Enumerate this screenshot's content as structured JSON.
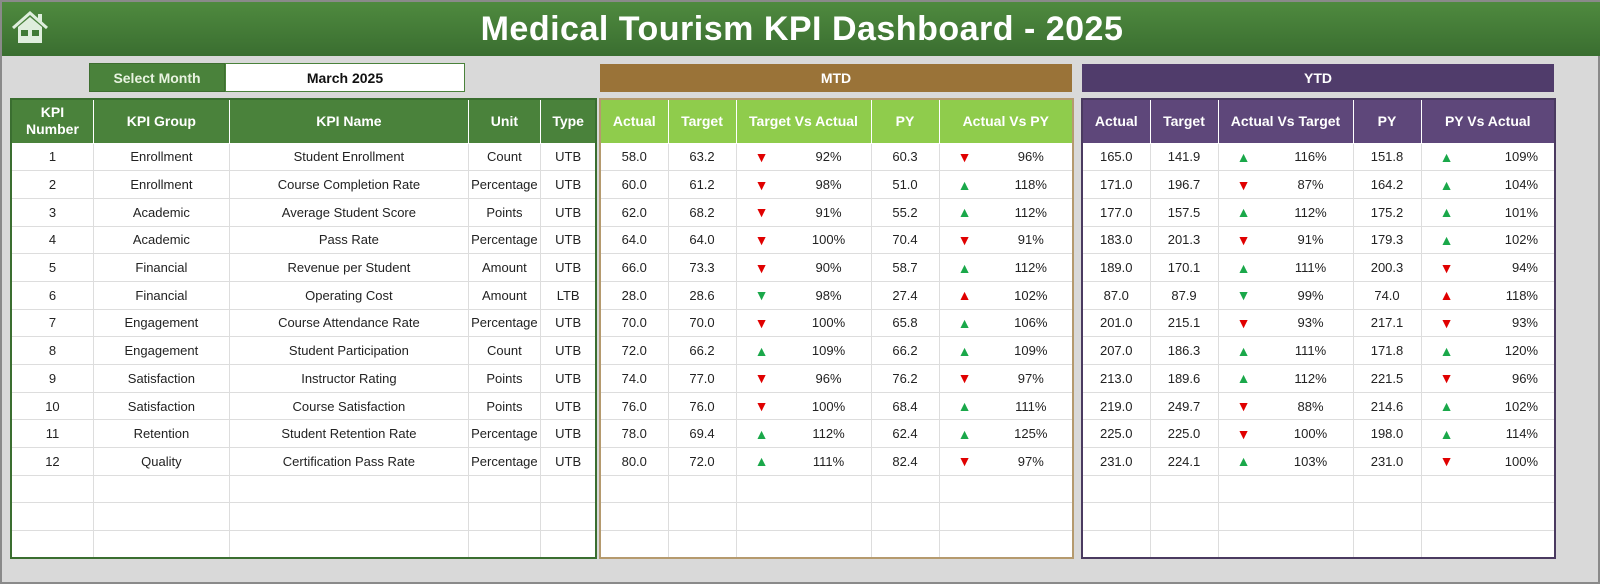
{
  "header": {
    "title": "Medical Tourism KPI Dashboard - 2025",
    "home_icon": "home-icon"
  },
  "month_selector": {
    "label": "Select Month",
    "value": "March 2025"
  },
  "sections": {
    "mtd": "MTD",
    "ytd": "YTD"
  },
  "colors": {
    "title_green": "#3f7a35",
    "mtd_band": "#9a7338",
    "ytd_band": "#503c6b",
    "mtd_header": "#8fcc4c",
    "ytd_header": "#5e477a",
    "up": "#1aa84a",
    "down": "#e00000"
  },
  "left_headers": [
    "KPI Number",
    "KPI Group",
    "KPI Name",
    "Unit",
    "Type"
  ],
  "mtd_headers": [
    "Actual",
    "Target",
    "Target Vs Actual",
    "PY",
    "Actual Vs PY"
  ],
  "ytd_headers": [
    "Actual",
    "Target",
    "Actual Vs Target",
    "PY",
    "PY Vs Actual"
  ],
  "rows": [
    {
      "num": "1",
      "group": "Enrollment",
      "name": "Student Enrollment",
      "unit": "Count",
      "type": "UTB",
      "mtd": {
        "actual": "58.0",
        "target": "63.2",
        "tva_dir": "down",
        "tva": "92%",
        "py": "60.3",
        "avp_dir": "down",
        "avp": "96%"
      },
      "ytd": {
        "actual": "165.0",
        "target": "141.9",
        "avt_dir": "up",
        "avt": "116%",
        "py": "151.8",
        "pva_dir": "up",
        "pva": "109%"
      }
    },
    {
      "num": "2",
      "group": "Enrollment",
      "name": "Course Completion Rate",
      "unit": "Percentage",
      "type": "UTB",
      "mtd": {
        "actual": "60.0",
        "target": "61.2",
        "tva_dir": "down",
        "tva": "98%",
        "py": "51.0",
        "avp_dir": "up",
        "avp": "118%"
      },
      "ytd": {
        "actual": "171.0",
        "target": "196.7",
        "avt_dir": "down",
        "avt": "87%",
        "py": "164.2",
        "pva_dir": "up",
        "pva": "104%"
      }
    },
    {
      "num": "3",
      "group": "Academic",
      "name": "Average Student Score",
      "unit": "Points",
      "type": "UTB",
      "mtd": {
        "actual": "62.0",
        "target": "68.2",
        "tva_dir": "down",
        "tva": "91%",
        "py": "55.2",
        "avp_dir": "up",
        "avp": "112%"
      },
      "ytd": {
        "actual": "177.0",
        "target": "157.5",
        "avt_dir": "up",
        "avt": "112%",
        "py": "175.2",
        "pva_dir": "up",
        "pva": "101%"
      }
    },
    {
      "num": "4",
      "group": "Academic",
      "name": "Pass Rate",
      "unit": "Percentage",
      "type": "UTB",
      "mtd": {
        "actual": "64.0",
        "target": "64.0",
        "tva_dir": "down",
        "tva": "100%",
        "py": "70.4",
        "avp_dir": "down",
        "avp": "91%"
      },
      "ytd": {
        "actual": "183.0",
        "target": "201.3",
        "avt_dir": "down",
        "avt": "91%",
        "py": "179.3",
        "pva_dir": "up",
        "pva": "102%"
      }
    },
    {
      "num": "5",
      "group": "Financial",
      "name": "Revenue per Student",
      "unit": "Amount",
      "type": "UTB",
      "mtd": {
        "actual": "66.0",
        "target": "73.3",
        "tva_dir": "down",
        "tva": "90%",
        "py": "58.7",
        "avp_dir": "up",
        "avp": "112%"
      },
      "ytd": {
        "actual": "189.0",
        "target": "170.1",
        "avt_dir": "up",
        "avt": "111%",
        "py": "200.3",
        "pva_dir": "down",
        "pva": "94%"
      }
    },
    {
      "num": "6",
      "group": "Financial",
      "name": "Operating Cost",
      "unit": "Amount",
      "type": "LTB",
      "mtd": {
        "actual": "28.0",
        "target": "28.6",
        "tva_dir": "down-green",
        "tva": "98%",
        "py": "27.4",
        "avp_dir": "up-red",
        "avp": "102%"
      },
      "ytd": {
        "actual": "87.0",
        "target": "87.9",
        "avt_dir": "down-green",
        "avt": "99%",
        "py": "74.0",
        "pva_dir": "up-red",
        "pva": "118%"
      }
    },
    {
      "num": "7",
      "group": "Engagement",
      "name": "Course Attendance Rate",
      "unit": "Percentage",
      "type": "UTB",
      "mtd": {
        "actual": "70.0",
        "target": "70.0",
        "tva_dir": "down",
        "tva": "100%",
        "py": "65.8",
        "avp_dir": "up",
        "avp": "106%"
      },
      "ytd": {
        "actual": "201.0",
        "target": "215.1",
        "avt_dir": "down",
        "avt": "93%",
        "py": "217.1",
        "pva_dir": "down",
        "pva": "93%"
      }
    },
    {
      "num": "8",
      "group": "Engagement",
      "name": "Student Participation",
      "unit": "Count",
      "type": "UTB",
      "mtd": {
        "actual": "72.0",
        "target": "66.2",
        "tva_dir": "up",
        "tva": "109%",
        "py": "66.2",
        "avp_dir": "up",
        "avp": "109%"
      },
      "ytd": {
        "actual": "207.0",
        "target": "186.3",
        "avt_dir": "up",
        "avt": "111%",
        "py": "171.8",
        "pva_dir": "up",
        "pva": "120%"
      }
    },
    {
      "num": "9",
      "group": "Satisfaction",
      "name": "Instructor Rating",
      "unit": "Points",
      "type": "UTB",
      "mtd": {
        "actual": "74.0",
        "target": "77.0",
        "tva_dir": "down",
        "tva": "96%",
        "py": "76.2",
        "avp_dir": "down",
        "avp": "97%"
      },
      "ytd": {
        "actual": "213.0",
        "target": "189.6",
        "avt_dir": "up",
        "avt": "112%",
        "py": "221.5",
        "pva_dir": "down",
        "pva": "96%"
      }
    },
    {
      "num": "10",
      "group": "Satisfaction",
      "name": "Course Satisfaction",
      "unit": "Points",
      "type": "UTB",
      "mtd": {
        "actual": "76.0",
        "target": "76.0",
        "tva_dir": "down",
        "tva": "100%",
        "py": "68.4",
        "avp_dir": "up",
        "avp": "111%"
      },
      "ytd": {
        "actual": "219.0",
        "target": "249.7",
        "avt_dir": "down",
        "avt": "88%",
        "py": "214.6",
        "pva_dir": "up",
        "pva": "102%"
      }
    },
    {
      "num": "11",
      "group": "Retention",
      "name": "Student Retention Rate",
      "unit": "Percentage",
      "type": "UTB",
      "mtd": {
        "actual": "78.0",
        "target": "69.4",
        "tva_dir": "up",
        "tva": "112%",
        "py": "62.4",
        "avp_dir": "up",
        "avp": "125%"
      },
      "ytd": {
        "actual": "225.0",
        "target": "225.0",
        "avt_dir": "down",
        "avt": "100%",
        "py": "198.0",
        "pva_dir": "up",
        "pva": "114%"
      }
    },
    {
      "num": "12",
      "group": "Quality",
      "name": "Certification Pass Rate",
      "unit": "Percentage",
      "type": "UTB",
      "mtd": {
        "actual": "80.0",
        "target": "72.0",
        "tva_dir": "up",
        "tva": "111%",
        "py": "82.4",
        "avp_dir": "down",
        "avp": "97%"
      },
      "ytd": {
        "actual": "231.0",
        "target": "224.1",
        "avt_dir": "up",
        "avt": "103%",
        "py": "231.0",
        "pva_dir": "down",
        "pva": "100%"
      }
    }
  ]
}
